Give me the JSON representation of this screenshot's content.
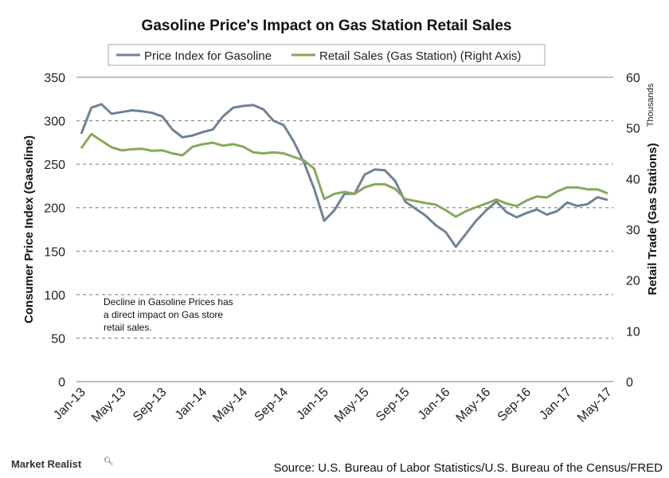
{
  "chart_data": {
    "type": "line",
    "title": "Gasoline Price's Impact on Gas Station Retail Sales",
    "ylabel": "Consumer Price Index (Gasoline)",
    "y2label": "Retail Trade (Gas Stations)",
    "y2unit": "Thousands",
    "ylim": [
      0,
      350
    ],
    "y2lim": [
      0,
      60
    ],
    "yticks": [
      "0",
      "50",
      "100",
      "150",
      "200",
      "250",
      "300",
      "350"
    ],
    "y2ticks": [
      "0",
      "10",
      "20",
      "30",
      "40",
      "50",
      "60"
    ],
    "xtick_labels": [
      "Jan-13",
      "May-13",
      "Sep-13",
      "Jan-14",
      "May-14",
      "Sep-14",
      "Jan-15",
      "May-15",
      "Sep-15",
      "Jan-16",
      "May-16",
      "Sep-16",
      "Jan-17",
      "May-17"
    ],
    "grid": "horizontal dashed",
    "legend": "top",
    "x": [
      "Jan-13",
      "Feb-13",
      "Mar-13",
      "Apr-13",
      "May-13",
      "Jun-13",
      "Jul-13",
      "Aug-13",
      "Sep-13",
      "Oct-13",
      "Nov-13",
      "Dec-13",
      "Jan-14",
      "Feb-14",
      "Mar-14",
      "Apr-14",
      "May-14",
      "Jun-14",
      "Jul-14",
      "Aug-14",
      "Sep-14",
      "Oct-14",
      "Nov-14",
      "Dec-14",
      "Jan-15",
      "Feb-15",
      "Mar-15",
      "Apr-15",
      "May-15",
      "Jun-15",
      "Jul-15",
      "Aug-15",
      "Sep-15",
      "Oct-15",
      "Nov-15",
      "Dec-15",
      "Jan-16",
      "Feb-16",
      "Mar-16",
      "Apr-16",
      "May-16",
      "Jun-16",
      "Jul-16",
      "Aug-16",
      "Sep-16",
      "Oct-16",
      "Nov-16",
      "Dec-16",
      "Jan-17",
      "Feb-17",
      "Mar-17",
      "Apr-17",
      "May-17"
    ],
    "series": [
      {
        "name": "Price Index for Gasoline",
        "axis": "left",
        "color": "#6f8296",
        "values": [
          285,
          315,
          319,
          308,
          310,
          312,
          311,
          309,
          305,
          290,
          281,
          283,
          287,
          290,
          305,
          315,
          317,
          318,
          313,
          300,
          295,
          276,
          252,
          222,
          185,
          197,
          216,
          216,
          238,
          244,
          243,
          231,
          207,
          199,
          191,
          180,
          172,
          155,
          170,
          185,
          197,
          207,
          195,
          189,
          194,
          198,
          192,
          196,
          206,
          202,
          204,
          212,
          209
        ]
      },
      {
        "name": "Retail Sales (Gas Station) (Right Axis)",
        "axis": "right",
        "color": "#86a95a",
        "values": [
          46,
          48.8,
          47.5,
          46.2,
          45.6,
          45.8,
          45.9,
          45.5,
          45.6,
          45,
          44.6,
          46.3,
          46.8,
          47.1,
          46.5,
          46.8,
          46.3,
          45.2,
          45,
          45.2,
          45,
          44.3,
          43.6,
          42,
          36,
          37,
          37.4,
          37,
          38.3,
          38.9,
          38.9,
          38,
          36,
          35.6,
          35.2,
          34.9,
          33.8,
          32.5,
          33.6,
          34.4,
          35.1,
          35.9,
          35.1,
          34.6,
          35.7,
          36.5,
          36.3,
          37.5,
          38.3,
          38.3,
          37.9,
          37.9,
          37.1
        ]
      }
    ],
    "annotation": "Decline in Gasoline Prices has a direct impact on Gas store retail sales."
  },
  "footer": {
    "brand": "Market Realist",
    "source": "Source: U.S. Bureau of Labor Statistics/U.S. Bureau of the Census/FRED"
  }
}
